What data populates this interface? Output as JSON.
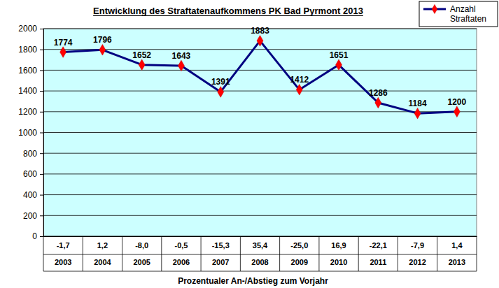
{
  "chart_data": {
    "type": "line",
    "title": "Entwicklung des Straftatenaufkommens PK Bad Pyrmont 2013",
    "x_label": "Prozentualer An-/Abstieg zum Vorjahr",
    "categories": [
      "2003",
      "2004",
      "2005",
      "2006",
      "2007",
      "2008",
      "2009",
      "2010",
      "2011",
      "2012",
      "2013"
    ],
    "change_labels": [
      "-1,7",
      "1,2",
      "-8,0",
      "-0,5",
      "-15,3",
      "35,4",
      "-25,0",
      "16,9",
      "-22,1",
      "-7,9",
      "1,4"
    ],
    "series": [
      {
        "name": "Anzahl Straftaten",
        "color": "#000080",
        "marker": "diamond",
        "values": [
          1774,
          1796,
          1652,
          1643,
          1391,
          1883,
          1412,
          1651,
          1286,
          1184,
          1200
        ]
      }
    ],
    "ylim": [
      0,
      2000
    ],
    "yticks": [
      0,
      200,
      400,
      600,
      800,
      1000,
      1200,
      1400,
      1600,
      1800,
      2000
    ],
    "grid": true,
    "legend": "top-right",
    "data_labels": true
  }
}
